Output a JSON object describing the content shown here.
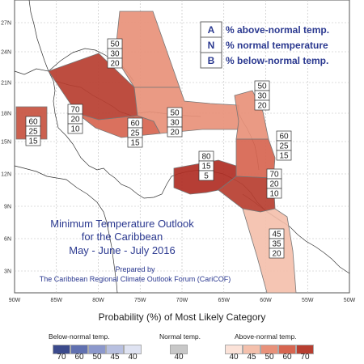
{
  "title_lines": [
    "Minimum Temperature Outlook",
    "for the Caribbean",
    "May - June - July 2016"
  ],
  "prepared_by": [
    "Prepared by",
    "The Caribbean Regional Climate Outlook Forum (CariCOF)"
  ],
  "legend_key": [
    {
      "letter": "A",
      "text": "% above-normal temp."
    },
    {
      "letter": "N",
      "text": "% normal temperature"
    },
    {
      "letter": "B",
      "text": "% below-normal temp."
    }
  ],
  "x_ticks": [
    "90W",
    "85W",
    "80W",
    "75W",
    "70W",
    "65W",
    "60W",
    "55W",
    "50W"
  ],
  "y_ticks": [
    "3N",
    "6N",
    "9N",
    "12N",
    "15N",
    "18N",
    "21N",
    "24N",
    "27N"
  ],
  "regions": [
    {
      "id": "bahamas-north",
      "A": 50,
      "N": 30,
      "B": 20,
      "color": "#e8917a"
    },
    {
      "id": "gulf-west",
      "A": 60,
      "N": 25,
      "B": 15,
      "color": "#c75240"
    },
    {
      "id": "cuba",
      "A": 70,
      "N": 20,
      "B": 10,
      "color": "#b73e30"
    },
    {
      "id": "jamaica",
      "A": 60,
      "N": 25,
      "B": 15,
      "color": "#d76550"
    },
    {
      "id": "hispaniola",
      "A": 50,
      "N": 30,
      "B": 20,
      "color": "#e8917a"
    },
    {
      "id": "leeward-north",
      "A": 50,
      "N": 30,
      "B": 20,
      "color": "#e8917a"
    },
    {
      "id": "windward",
      "A": 60,
      "N": 25,
      "B": 15,
      "color": "#d76550"
    },
    {
      "id": "abc-islands",
      "A": 80,
      "N": 15,
      "B": 5,
      "color": "#b02e24"
    },
    {
      "id": "trinidad",
      "A": 70,
      "N": 20,
      "B": 10,
      "color": "#b73e30"
    },
    {
      "id": "guianas",
      "A": 45,
      "N": 35,
      "B": 20,
      "color": "#f4c0ac"
    }
  ],
  "bottom": {
    "axis_title": "Probability (%) of Most Likely Category",
    "below_label": "Below-normal temp.",
    "normal_label": "Normal temp.",
    "above_label": "Above-normal temp.",
    "below_values": [
      "70",
      "60",
      "50",
      "45",
      "40"
    ],
    "normal_values": [
      "40"
    ],
    "above_values": [
      "40",
      "45",
      "50",
      "60",
      "70"
    ],
    "below_colors": [
      "#3b4a8c",
      "#6070b0",
      "#8c98cc",
      "#b8c0e0",
      "#dfe3f2"
    ],
    "normal_color": "#c8c8c8",
    "above_colors": [
      "#fbe2d8",
      "#f4c0ac",
      "#e8917a",
      "#d76550",
      "#b73e30"
    ]
  }
}
